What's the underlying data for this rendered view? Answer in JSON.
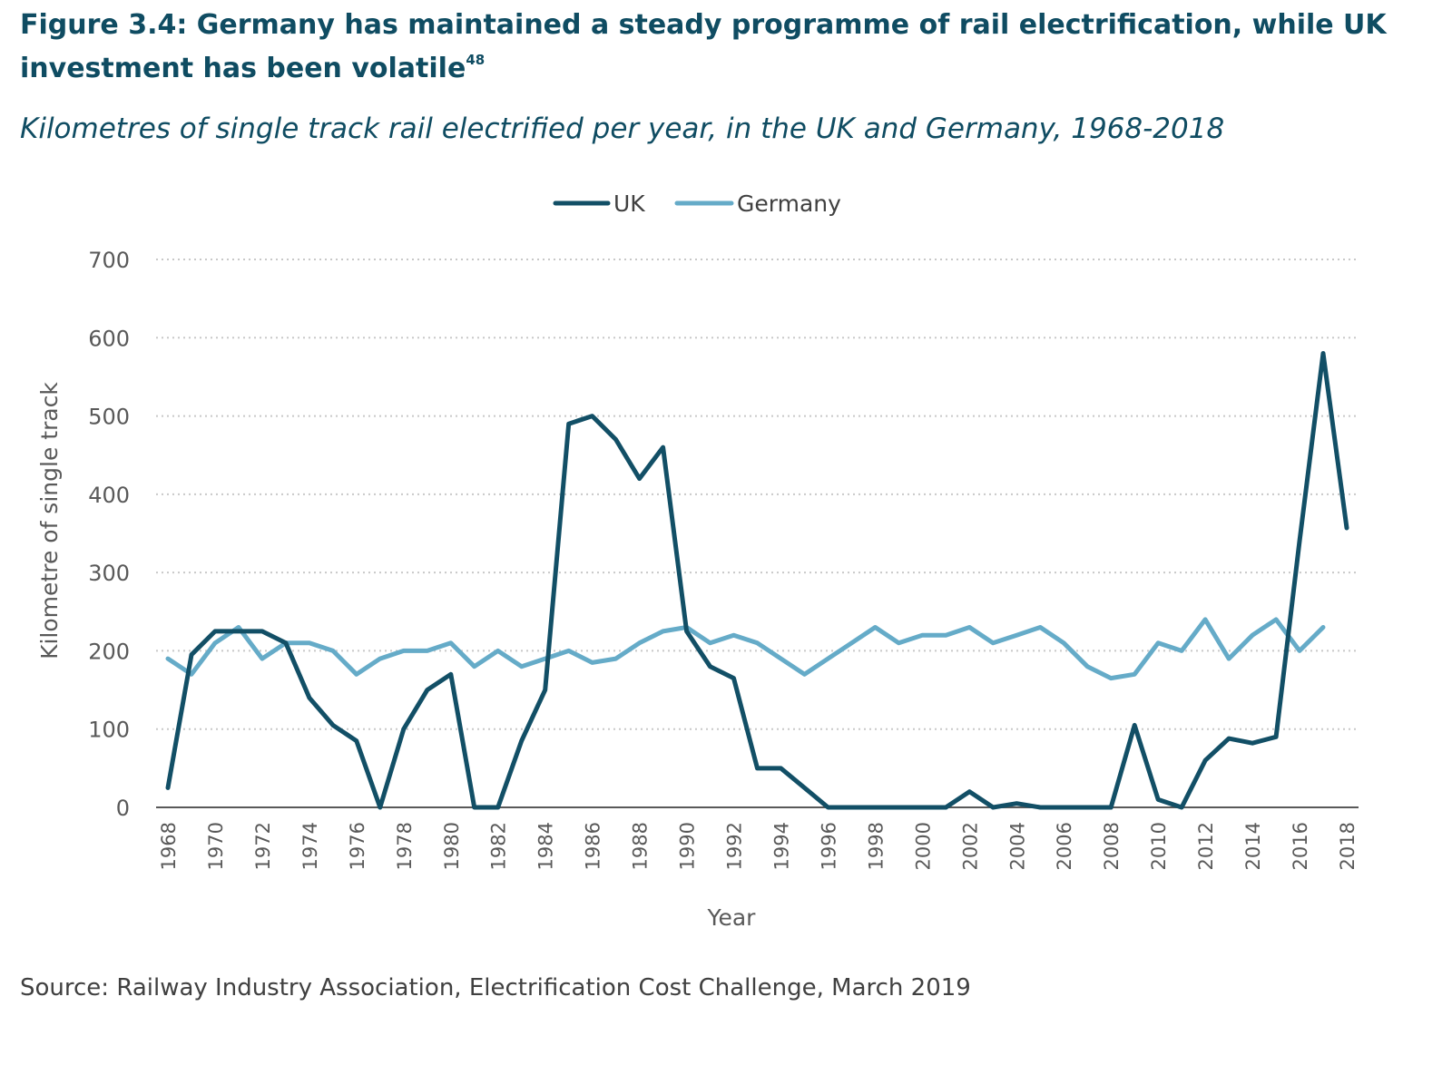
{
  "figure": {
    "title": "Figure 3.4: Germany has maintained a steady programme of rail electrification, while UK investment has been volatile",
    "footnote_ref": "48",
    "subtitle": "Kilometres of single track rail electrified per year, in the UK and Germany, 1968-2018",
    "source": "Source: Railway Industry Association, Electrification Cost Challenge, March 2019"
  },
  "colors": {
    "uk": "#124f66",
    "germany": "#65abc8",
    "gridline": "#c8c8c8",
    "axis": "#595959"
  },
  "chart_data": {
    "type": "line",
    "title": "",
    "xlabel": "Year",
    "ylabel": "Kilometre of single track",
    "ylim": [
      0,
      700
    ],
    "yticks": [
      0,
      100,
      200,
      300,
      400,
      500,
      600,
      700
    ],
    "x": [
      1968,
      1969,
      1970,
      1971,
      1972,
      1973,
      1974,
      1975,
      1976,
      1977,
      1978,
      1979,
      1980,
      1981,
      1982,
      1983,
      1984,
      1985,
      1986,
      1987,
      1988,
      1989,
      1990,
      1991,
      1992,
      1993,
      1994,
      1995,
      1996,
      1997,
      1998,
      1999,
      2000,
      2001,
      2002,
      2003,
      2004,
      2005,
      2006,
      2007,
      2008,
      2009,
      2010,
      2011,
      2012,
      2013,
      2014,
      2015,
      2016,
      2017,
      2018
    ],
    "xticks": [
      "1968",
      "1970",
      "1972",
      "1974",
      "1976",
      "1978",
      "1980",
      "1982",
      "1984",
      "1986",
      "1988",
      "1990",
      "1992",
      "1994",
      "1996",
      "1998",
      "2000",
      "2002",
      "2004",
      "2006",
      "2008",
      "2010",
      "2012",
      "2014",
      "2016",
      "2018"
    ],
    "grid": "horizontal-dotted",
    "legend": "top-center",
    "series": [
      {
        "name": "UK",
        "color_key": "uk",
        "values": [
          25,
          195,
          225,
          225,
          225,
          210,
          140,
          105,
          85,
          0,
          100,
          150,
          170,
          0,
          0,
          85,
          150,
          490,
          500,
          470,
          420,
          460,
          225,
          180,
          165,
          50,
          50,
          25,
          0,
          0,
          0,
          0,
          0,
          0,
          20,
          0,
          5,
          0,
          0,
          0,
          0,
          105,
          10,
          0,
          60,
          88,
          82,
          90,
          340,
          580,
          357
        ]
      },
      {
        "name": "Germany",
        "color_key": "germany",
        "values": [
          190,
          170,
          210,
          230,
          190,
          210,
          210,
          200,
          170,
          190,
          200,
          200,
          210,
          180,
          200,
          180,
          190,
          200,
          185,
          190,
          210,
          225,
          230,
          210,
          220,
          210,
          190,
          170,
          190,
          210,
          230,
          210,
          220,
          220,
          230,
          210,
          220,
          230,
          210,
          180,
          165,
          170,
          210,
          200,
          240,
          190,
          220,
          240,
          200,
          230,
          null
        ]
      }
    ]
  }
}
